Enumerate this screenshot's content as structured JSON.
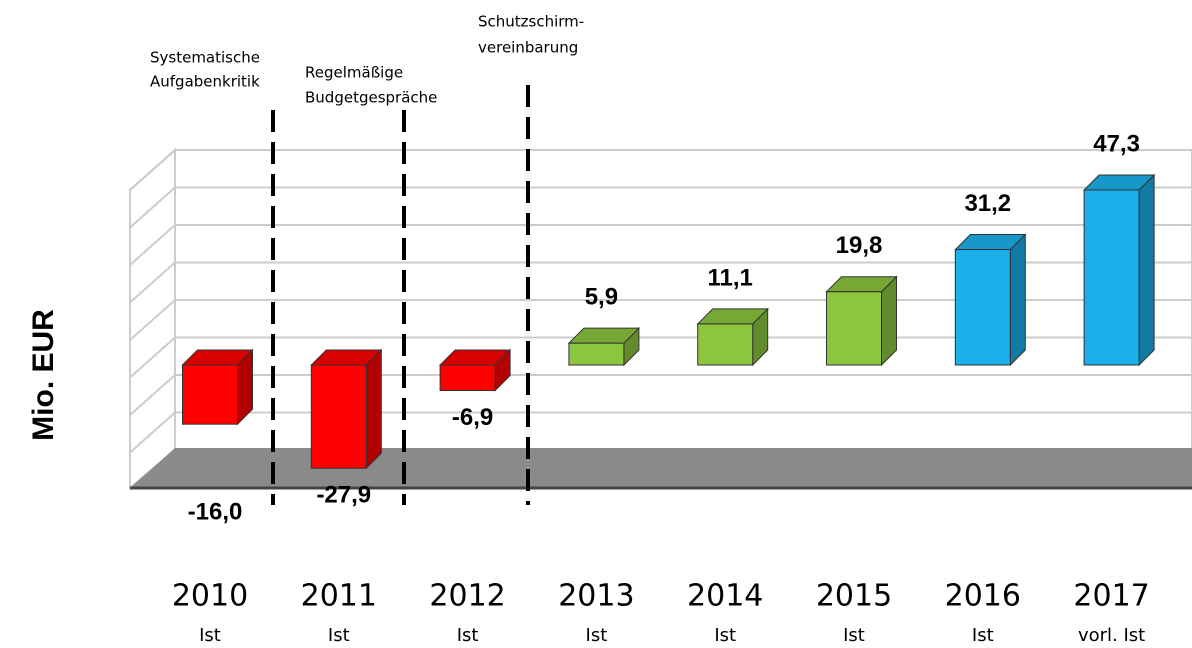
{
  "chart_data": {
    "type": "bar3d",
    "y_label": "Mio. EUR",
    "categories": [
      "2010",
      "2011",
      "2012",
      "2013",
      "2014",
      "2015",
      "2016",
      "2017"
    ],
    "sublabels": [
      "Ist",
      "Ist",
      "Ist",
      "Ist",
      "Ist",
      "Ist",
      "Ist",
      "vorl. Ist"
    ],
    "values": [
      -16.0,
      -27.9,
      -6.9,
      5.9,
      11.1,
      19.8,
      31.2,
      47.3
    ],
    "value_labels": [
      "-16,0",
      "-27,9",
      "-6,9",
      "5,9",
      "11,1",
      "19,8",
      "31,2",
      "47,3"
    ],
    "colors": [
      "#ff0000",
      "#ff0000",
      "#ff0000",
      "#8cc63f",
      "#8cc63f",
      "#8cc63f",
      "#1ab0ec",
      "#1ab0ec"
    ],
    "ylim": [
      -30,
      50
    ],
    "annotations": [
      [
        "Systematische",
        "Aufgabenkritik"
      ],
      [
        "Regelmäßige",
        "Budgetgespräche"
      ],
      [
        "Schutzschirm-",
        "vereinbarung"
      ]
    ]
  }
}
